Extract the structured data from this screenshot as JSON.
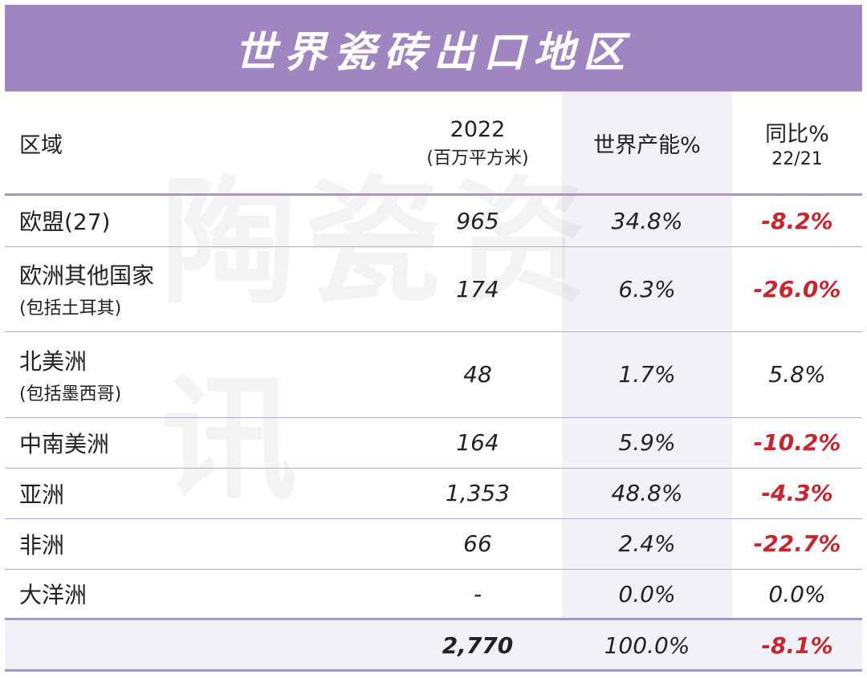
{
  "title": "世界瓷砖出口地区",
  "watermark": "陶瓷资讯",
  "header": {
    "region": "区域",
    "year": "2022",
    "unit": "(百万平方米)",
    "capacity": "世界产能%",
    "yoy": "同比%",
    "yoy_sub": "22/21"
  },
  "rows": [
    {
      "name": "欧盟(27)",
      "sub": "",
      "value": "965",
      "share": "34.8%",
      "yoy": "-8.2%"
    },
    {
      "name": "欧洲其他国家",
      "sub": "(包括土耳其)",
      "value": "174",
      "share": "6.3%",
      "yoy": "-26.0%"
    },
    {
      "name": "北美洲",
      "sub": "(包括墨西哥)",
      "value": "48",
      "share": "1.7%",
      "yoy": "5.8%"
    },
    {
      "name": "中南美洲",
      "sub": "",
      "value": "164",
      "share": "5.9%",
      "yoy": "-10.2%"
    },
    {
      "name": "亚洲",
      "sub": "",
      "value": "1,353",
      "share": "48.8%",
      "yoy": "-4.3%"
    },
    {
      "name": "非洲",
      "sub": "",
      "value": "66",
      "share": "2.4%",
      "yoy": "-22.7%"
    },
    {
      "name": "大洋洲",
      "sub": "",
      "value": "-",
      "share": "0.0%",
      "yoy": "0.0%"
    }
  ],
  "total": {
    "value": "2,770",
    "share": "100.0%",
    "yoy": "-8.1%"
  },
  "colors": {
    "title_bg": "#9f86c0",
    "negative": "#c8262f",
    "rule": "#b7a5d1",
    "shade": "#f2f1f8"
  }
}
